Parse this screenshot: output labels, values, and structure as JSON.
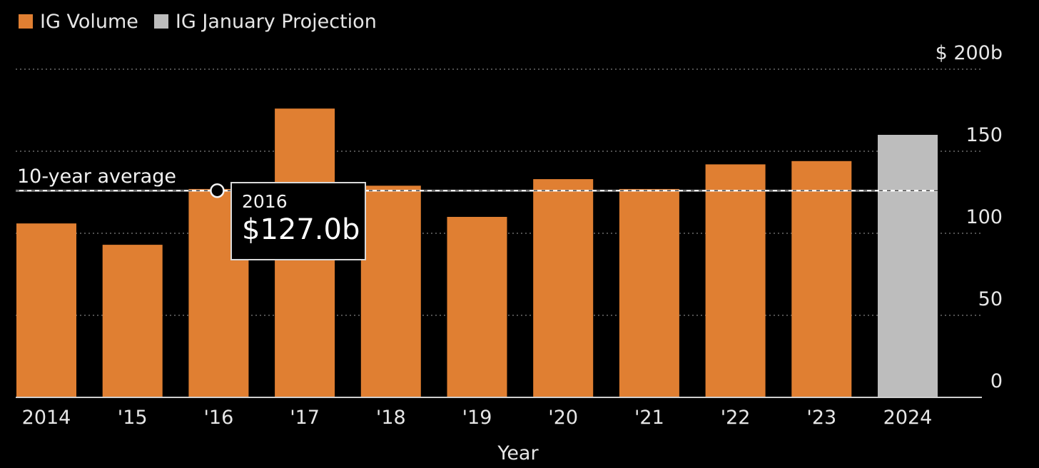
{
  "legend": [
    {
      "label": "IG Volume",
      "color": "#e07f32"
    },
    {
      "label": "IG January Projection",
      "color": "#bdbdbd"
    }
  ],
  "tooltip": {
    "year": "2016",
    "value": "$127.0b"
  },
  "chart_data": {
    "type": "bar",
    "categories": [
      "2014",
      "'15",
      "'16",
      "'17",
      "'18",
      "'19",
      "'20",
      "'21",
      "'22",
      "'23",
      "2024"
    ],
    "series": [
      {
        "name": "IG Volume",
        "color": "#e07f32",
        "values": [
          106,
          93,
          127,
          176,
          129,
          110,
          133,
          127,
          142,
          144,
          null
        ]
      },
      {
        "name": "IG January Projection",
        "color": "#bdbdbd",
        "values": [
          null,
          null,
          null,
          null,
          null,
          null,
          null,
          null,
          null,
          null,
          160
        ]
      }
    ],
    "xlabel": "Year",
    "ylabel": "",
    "ylim": [
      0,
      200
    ],
    "yticks": [
      0,
      50,
      100,
      150,
      200
    ],
    "ytick_labels": [
      "0",
      "50",
      "100",
      "150",
      "$ 200b"
    ],
    "reference_line": {
      "label": "10-year average",
      "value": 126
    },
    "grid": true
  }
}
